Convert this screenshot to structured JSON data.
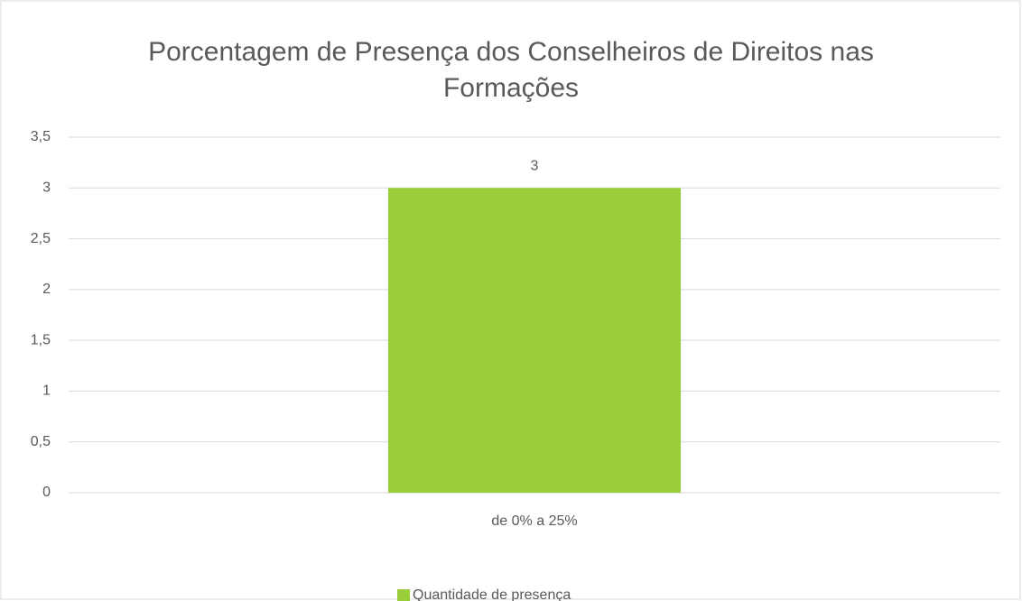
{
  "chart_data": {
    "type": "bar",
    "title": "Porcentagem de Presença dos Conselheiros de Direitos nas Formações",
    "categories": [
      "de 0% a 25%"
    ],
    "series": [
      {
        "name": "Quantidade de presença",
        "color": "#9acd3a",
        "values": [
          3
        ]
      }
    ],
    "ylim": [
      0,
      3.5
    ],
    "yticks": [
      0,
      {
        "value": 0.5,
        "label": "0,5"
      },
      1,
      {
        "value": 1.5,
        "label": "1,5"
      },
      2,
      {
        "value": 2.5,
        "label": "2,5"
      },
      3,
      {
        "value": 3.5,
        "label": "3,5"
      }
    ],
    "grid": true,
    "legend": "bottom",
    "data_labels": true
  }
}
